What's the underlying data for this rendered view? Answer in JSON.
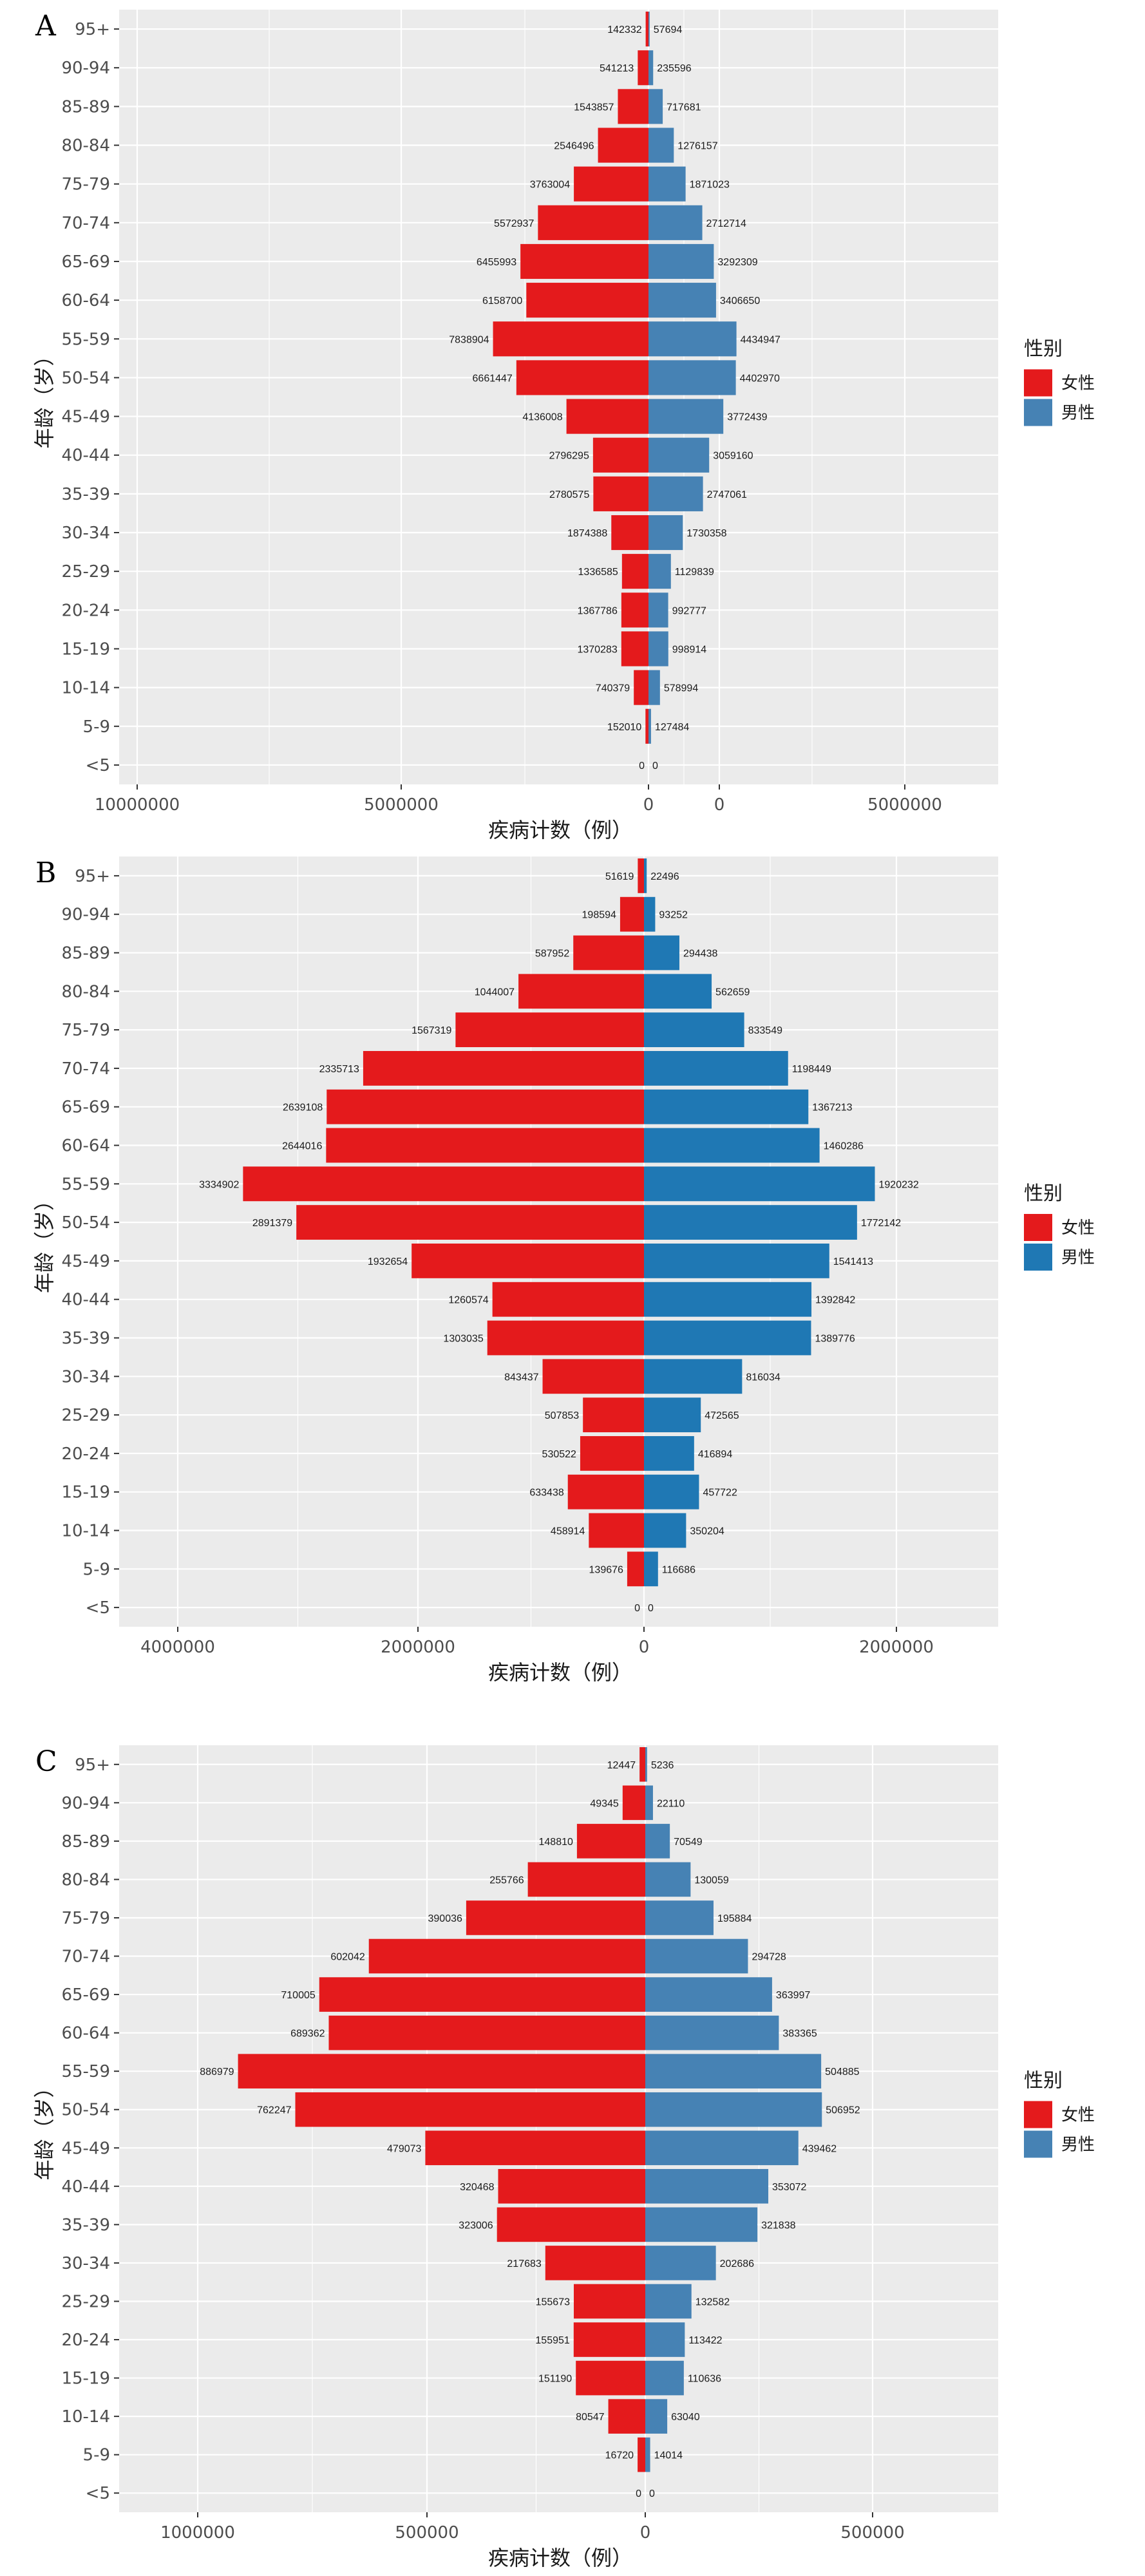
{
  "chart_data": [
    {
      "type": "bar",
      "panel_label": "A",
      "orientation": "horizontal-population-pyramid",
      "categories": [
        "95+",
        "90-94",
        "85-89",
        "80-84",
        "75-79",
        "70-74",
        "65-69",
        "60-64",
        "55-59",
        "50-54",
        "45-49",
        "40-44",
        "35-39",
        "30-34",
        "25-29",
        "20-24",
        "15-19",
        "10-14",
        "5-9",
        "<5"
      ],
      "series": [
        {
          "name": "女性",
          "color": "#e41a1c",
          "values": [
            142332,
            541213,
            1543857,
            2546496,
            3763004,
            5572937,
            6455993,
            6158700,
            7838904,
            6661447,
            4136008,
            2796295,
            2780575,
            1874388,
            1336585,
            1367786,
            1370283,
            740379,
            152010,
            0
          ]
        },
        {
          "name": "男性",
          "color": "#4682b4",
          "values": [
            57694,
            235596,
            717681,
            1276157,
            1871023,
            2712714,
            3292309,
            3406650,
            4434947,
            4402970,
            3772439,
            3059160,
            2747061,
            1730358,
            1129839,
            992777,
            998914,
            578994,
            127484,
            0
          ]
        }
      ],
      "left_ticks": [
        "10000000",
        "5000000",
        "0"
      ],
      "right_ticks": [
        "0",
        "5000000"
      ],
      "xlabel": "疾病计数（例）",
      "ylabel": "年龄（岁）",
      "grid": true,
      "legend": {
        "title": "性别",
        "placement": "right"
      }
    },
    {
      "type": "bar",
      "panel_label": "B",
      "orientation": "horizontal-population-pyramid",
      "categories": [
        "95+",
        "90-94",
        "85-89",
        "80-84",
        "75-79",
        "70-74",
        "65-69",
        "60-64",
        "55-59",
        "50-54",
        "45-49",
        "40-44",
        "35-39",
        "30-34",
        "25-29",
        "20-24",
        "15-19",
        "10-14",
        "5-9",
        "<5"
      ],
      "series": [
        {
          "name": "女性",
          "color": "#e41a1c",
          "values": [
            51619,
            198594,
            587952,
            1044007,
            1567319,
            2335713,
            2639108,
            2644016,
            3334902,
            2891379,
            1932654,
            1260574,
            1303035,
            843437,
            507853,
            530522,
            633438,
            458914,
            139676,
            0
          ]
        },
        {
          "name": "男性",
          "color": "#1f78b4",
          "values": [
            22496,
            93252,
            294438,
            562659,
            833549,
            1198449,
            1367213,
            1460286,
            1920232,
            1772142,
            1541413,
            1392842,
            1389776,
            816034,
            472565,
            416894,
            457722,
            350204,
            116686,
            0
          ]
        }
      ],
      "left_ticks": [
        "4000000",
        "2000000",
        "0"
      ],
      "right_ticks": [
        "2000000"
      ],
      "xlabel": "疾病计数（例）",
      "ylabel": "年龄（岁）",
      "grid": true,
      "legend": {
        "title": "性别",
        "placement": "right"
      }
    },
    {
      "type": "bar",
      "panel_label": "C",
      "orientation": "horizontal-population-pyramid",
      "categories": [
        "95+",
        "90-94",
        "85-89",
        "80-84",
        "75-79",
        "70-74",
        "65-69",
        "60-64",
        "55-59",
        "50-54",
        "45-49",
        "40-44",
        "35-39",
        "30-34",
        "25-29",
        "20-24",
        "15-19",
        "10-14",
        "5-9",
        "<5"
      ],
      "series": [
        {
          "name": "女性",
          "color": "#e41a1c",
          "values": [
            12447,
            49345,
            148810,
            255766,
            390036,
            602042,
            710005,
            689362,
            886979,
            762247,
            479073,
            320468,
            323006,
            217683,
            155673,
            155951,
            151190,
            80547,
            16720,
            0
          ]
        },
        {
          "name": "男性",
          "color": "#4682b4",
          "values": [
            5236,
            22110,
            70549,
            130059,
            195884,
            294728,
            363997,
            383365,
            504885,
            506952,
            439462,
            353072,
            321838,
            202686,
            132582,
            113422,
            110636,
            63040,
            14014,
            0
          ]
        }
      ],
      "left_ticks": [
        "1000000",
        "500000",
        "0"
      ],
      "right_ticks": [
        "500000"
      ],
      "xlabel": "疾病计数（例）",
      "ylabel": "年龄（岁）",
      "grid": true,
      "legend": {
        "title": "性别",
        "placement": "right"
      }
    }
  ]
}
